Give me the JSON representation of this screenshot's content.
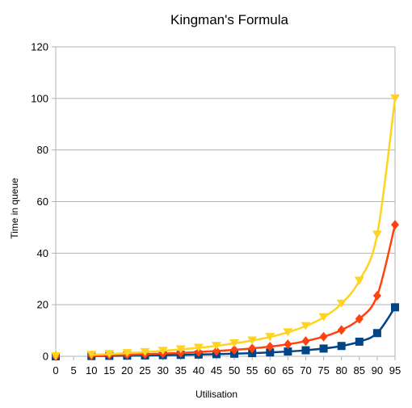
{
  "chart_data": {
    "type": "line",
    "title": "Kingman's Formula",
    "xlabel": "Utilisation",
    "ylabel": "Time in queue",
    "xlim": [
      0,
      95
    ],
    "ylim": [
      0,
      120
    ],
    "x_ticks": [
      "0",
      "5",
      "10",
      "15",
      "20",
      "25",
      "30",
      "35",
      "40",
      "45",
      "50",
      "55",
      "60",
      "65",
      "70",
      "75",
      "80",
      "85",
      "90",
      "95"
    ],
    "y_ticks": [
      "0",
      "20",
      "40",
      "60",
      "80",
      "100",
      "120"
    ],
    "grid": "horizontal",
    "legend": "none",
    "x": [
      0,
      10,
      15,
      20,
      25,
      30,
      35,
      40,
      45,
      50,
      55,
      60,
      65,
      70,
      75,
      80,
      85,
      90,
      95
    ],
    "series": [
      {
        "color": "#004586",
        "marker": "square",
        "values": [
          0,
          0.1,
          0.17,
          0.25,
          0.33,
          0.43,
          0.54,
          0.67,
          0.82,
          1.0,
          1.22,
          1.5,
          1.86,
          2.33,
          3.0,
          4.0,
          5.67,
          9.0,
          19.0
        ]
      },
      {
        "color": "#ff420e",
        "marker": "diamond",
        "values": [
          0,
          0.3,
          0.45,
          0.6,
          0.8,
          1.05,
          1.3,
          1.65,
          2.05,
          2.5,
          3.05,
          3.75,
          4.65,
          5.9,
          7.6,
          10.2,
          14.5,
          23.5,
          51.0
        ]
      },
      {
        "color": "#ffd320",
        "marker": "triangle-down",
        "values": [
          0,
          0.55,
          0.85,
          1.2,
          1.6,
          2.1,
          2.65,
          3.3,
          4.05,
          5.0,
          6.1,
          7.5,
          9.3,
          11.7,
          15.1,
          20.4,
          29.3,
          47.2,
          100.0
        ]
      }
    ]
  }
}
